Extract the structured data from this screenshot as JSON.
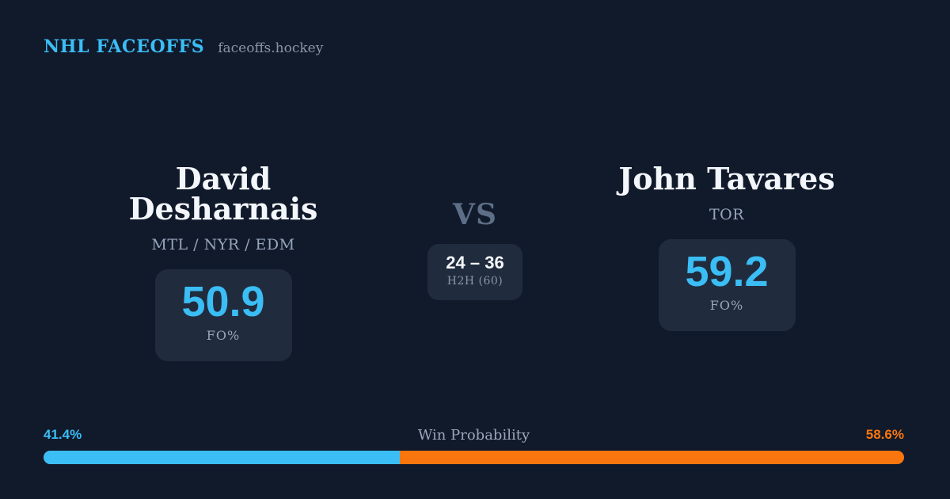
{
  "theme": {
    "background": "#111a2b",
    "card_background": "#202c3d",
    "accent_blue": "#3bbdf5",
    "accent_orange": "#f9760e"
  },
  "header": {
    "brand": "NHL FACEOFFS",
    "site": "faceoffs.hockey"
  },
  "matchup": {
    "player_left": {
      "name": "David Desharnais",
      "teams": "MTL / NYR / EDM",
      "fo_pct": "50.9",
      "fo_label": "FO%"
    },
    "vs_label": "VS",
    "h2h": {
      "score": "24 – 36",
      "label": "H2H (60)"
    },
    "player_right": {
      "name": "John Tavares",
      "teams": "TOR",
      "fo_pct": "59.2",
      "fo_label": "FO%"
    }
  },
  "win_probability": {
    "label": "Win Probability",
    "left_pct_text": "41.4%",
    "right_pct_text": "58.6%",
    "left_value": 41.4,
    "right_value": 58.6,
    "left_color": "#3bbdf5",
    "right_color": "#f9760e"
  }
}
